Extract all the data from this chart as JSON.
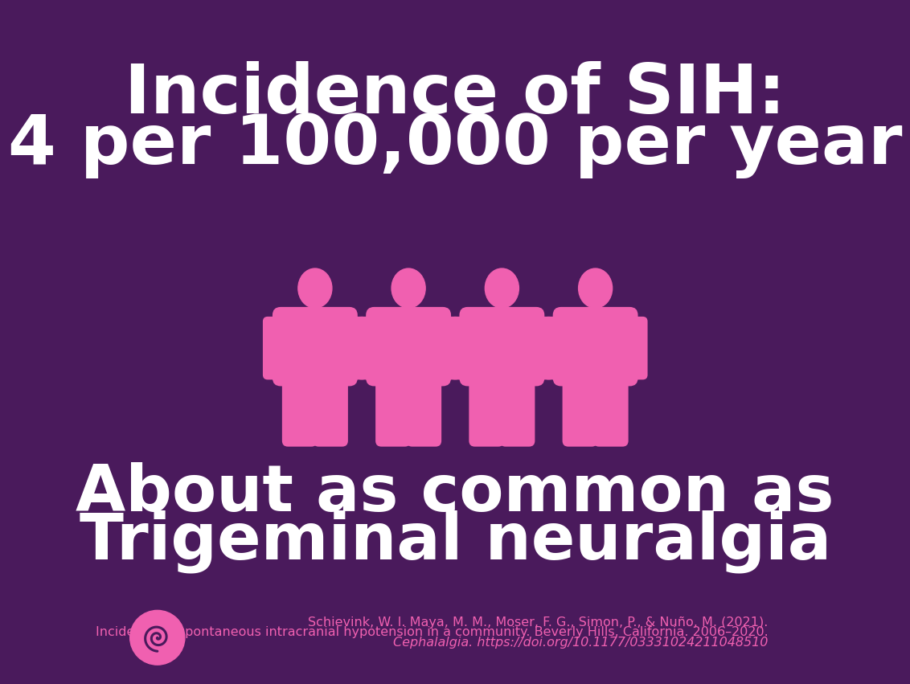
{
  "background_color": "#4a1a5c",
  "pink_color": "#f060b0",
  "white_color": "#ffffff",
  "title_line1": "Incidence of SIH:",
  "title_line2": "4 per 100,000 per year",
  "subtitle_line1": "About as common as",
  "subtitle_line2": "Trigeminal neuralgia",
  "num_figures": 4,
  "citation_line1": "Schievink, W. I. Maya, M. M., Moser, F. G., Simon, P., & Nuño, M. (2021).",
  "citation_line2": "Incidence of spontaneous intracranial hypotension in a community. Beverly Hills, California. 2006–2020.",
  "citation_line3": "Cephalalgia. https://doi.org/10.1177/03331024211048510",
  "title_fontsize": 62,
  "subtitle_fontsize": 58,
  "citation_fontsize": 11.5
}
